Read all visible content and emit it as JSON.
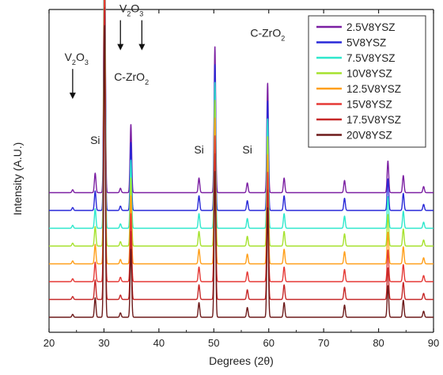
{
  "chart_data": {
    "type": "line",
    "xlabel": "Degrees (2θ)",
    "ylabel": "Intensity (A.U.)",
    "xlim": [
      20,
      90
    ],
    "x_ticks": [
      20,
      30,
      40,
      50,
      60,
      70,
      80,
      90
    ],
    "grid": false,
    "legend_position": "top-right",
    "series": [
      {
        "name": "2.5V8YSZ",
        "color": "#7b1fa2",
        "baseline": 7
      },
      {
        "name": "5V8YSZ",
        "color": "#2828d8",
        "baseline": 6
      },
      {
        "name": "7.5V8YSZ",
        "color": "#2ee8cc",
        "baseline": 5
      },
      {
        "name": "10V8YSZ",
        "color": "#a6e22e",
        "baseline": 4
      },
      {
        "name": "12.5V8YSZ",
        "color": "#ff9f1a",
        "baseline": 3
      },
      {
        "name": "15V8YSZ",
        "color": "#e53935",
        "baseline": 2
      },
      {
        "name": "17.5V8YSZ",
        "color": "#c62828",
        "baseline": 1
      },
      {
        "name": "20V8YSZ",
        "color": "#6d1a1a",
        "baseline": 0
      }
    ],
    "peaks": [
      {
        "x": 24.3,
        "height": 0.12,
        "label": "V2O3"
      },
      {
        "x": 28.4,
        "height": 0.8,
        "label": "Si"
      },
      {
        "x": 30.1,
        "height": 12.0,
        "label": "C-ZrO2"
      },
      {
        "x": 33.0,
        "height": 0.18,
        "label": "V2O3"
      },
      {
        "x": 34.9,
        "height": 2.8,
        "label": "C-ZrO2"
      },
      {
        "x": 47.3,
        "height": 0.6,
        "label": "Si"
      },
      {
        "x": 50.2,
        "height": 6.0,
        "label": "C-ZrO2"
      },
      {
        "x": 56.1,
        "height": 0.4,
        "label": "Si"
      },
      {
        "x": 59.8,
        "height": 4.5,
        "label": "C-ZrO2"
      },
      {
        "x": 62.8,
        "height": 0.6
      },
      {
        "x": 73.8,
        "height": 0.5
      },
      {
        "x": 81.7,
        "height": 1.3
      },
      {
        "x": 84.5,
        "height": 0.7
      },
      {
        "x": 88.2,
        "height": 0.25
      }
    ],
    "annotations": [
      {
        "text": "C-ZrO",
        "sub": "2",
        "x": 30.1,
        "level": 13.0
      },
      {
        "text": "V",
        "sub": "2",
        "text2": "O",
        "sub2": "3",
        "x": 25.0,
        "level": 5.4,
        "arrow": true
      },
      {
        "text": "Si",
        "x": 28.4,
        "level": 2.0
      },
      {
        "text": "V",
        "sub": "2",
        "text2": "O",
        "sub2": "3",
        "x": 35.0,
        "level": 7.4,
        "arrow": true
      },
      {
        "text": "C-ZrO",
        "sub": "2",
        "x": 35.0,
        "level": 4.6
      },
      {
        "text": "Si",
        "x": 47.3,
        "level": 1.6
      },
      {
        "text": "C-ZrO",
        "sub": "2",
        "x": 50.2,
        "level": 8.3
      },
      {
        "text": "Si",
        "x": 56.1,
        "level": 1.6
      },
      {
        "text": "C-ZrO",
        "sub": "2",
        "x": 59.8,
        "level": 6.4
      }
    ]
  }
}
